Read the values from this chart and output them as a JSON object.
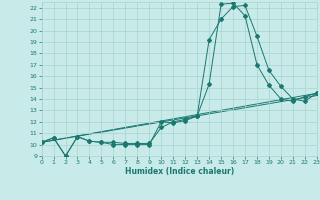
{
  "xlabel": "Humidex (Indice chaleur)",
  "bg_color": "#c8eae8",
  "grid_color": "#a8d4d0",
  "line_color": "#1a7870",
  "xlim": [
    0,
    23
  ],
  "ylim": [
    9,
    22.5
  ],
  "xticks": [
    0,
    1,
    2,
    3,
    4,
    5,
    6,
    7,
    8,
    9,
    10,
    11,
    12,
    13,
    14,
    15,
    16,
    17,
    18,
    19,
    20,
    21,
    22,
    23
  ],
  "yticks": [
    9,
    10,
    11,
    12,
    13,
    14,
    15,
    16,
    17,
    18,
    19,
    20,
    21,
    22
  ],
  "curve1_x": [
    0,
    1,
    2,
    3,
    4,
    5,
    6,
    7,
    8,
    9,
    10,
    11,
    12,
    13,
    14,
    15,
    16,
    17,
    18,
    19,
    20,
    21,
    22,
    23
  ],
  "curve1_y": [
    10.2,
    10.6,
    9.0,
    10.7,
    10.3,
    10.2,
    10.2,
    10.1,
    10.1,
    10.1,
    11.5,
    12.0,
    12.2,
    12.5,
    15.3,
    22.3,
    22.4,
    21.3,
    17.0,
    15.2,
    14.0,
    13.8,
    14.2,
    14.5
  ],
  "curve2_x": [
    0,
    1,
    2,
    3,
    4,
    5,
    6,
    7,
    8,
    9,
    10,
    11,
    12,
    13,
    14,
    15,
    16,
    17,
    18,
    19,
    20,
    21,
    22,
    23
  ],
  "curve2_y": [
    10.2,
    10.6,
    9.0,
    10.7,
    10.3,
    10.2,
    10.0,
    10.0,
    10.0,
    10.0,
    12.0,
    11.9,
    12.1,
    12.5,
    19.2,
    21.0,
    22.1,
    22.2,
    19.5,
    16.5,
    15.1,
    14.0,
    13.8,
    14.5
  ],
  "line1_x": [
    0,
    23
  ],
  "line1_y": [
    10.2,
    14.5
  ],
  "line2_x": [
    0,
    23
  ],
  "line2_y": [
    10.2,
    14.3
  ]
}
